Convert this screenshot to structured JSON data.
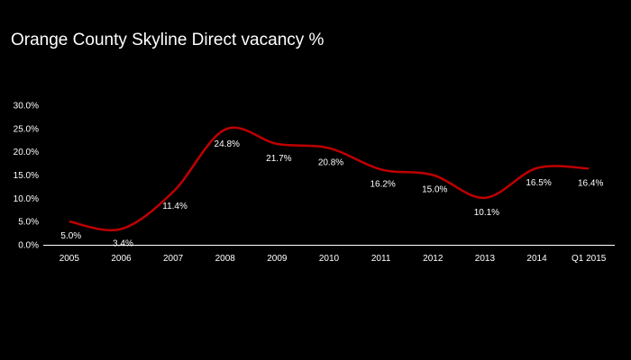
{
  "colors": {
    "background": "#000000",
    "line": "#c00000",
    "axis": "#ffffff",
    "text": "#ffffff"
  },
  "chart_data": {
    "type": "line",
    "title": "Orange County Skyline Direct vacancy %",
    "xlabel": "",
    "ylabel": "",
    "categories": [
      "2005",
      "2006",
      "2007",
      "2008",
      "2009",
      "2010",
      "2011",
      "2012",
      "2013",
      "2014",
      "Q1 2015"
    ],
    "values": [
      5.0,
      3.4,
      11.4,
      24.8,
      21.7,
      20.8,
      16.2,
      15.0,
      10.1,
      16.5,
      16.4
    ],
    "data_labels": [
      "5.0%",
      "3.4%",
      "11.4%",
      "24.8%",
      "21.7%",
      "20.8%",
      "16.2%",
      "15.0%",
      "10.1%",
      "16.5%",
      "16.4%"
    ],
    "ylim": [
      0,
      30
    ],
    "y_ticks": [
      "0.0%",
      "5.0%",
      "10.0%",
      "15.0%",
      "20.0%",
      "25.0%",
      "30.0%"
    ],
    "grid": false,
    "legend": "none",
    "smooth": true
  }
}
